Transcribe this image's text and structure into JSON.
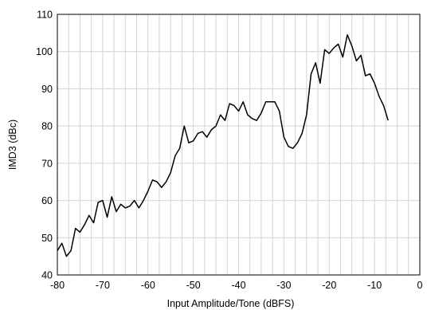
{
  "chart_data": {
    "type": "line",
    "xlabel": "Input Amplitude/Tone (dBFS)",
    "ylabel": "IMD3 (dBc)",
    "xlim": [
      -80,
      0
    ],
    "ylim": [
      40,
      110
    ],
    "xticks": [
      -80,
      -70,
      -60,
      -50,
      -40,
      -30,
      -20,
      -10,
      0
    ],
    "yticks": [
      40,
      50,
      60,
      70,
      80,
      90,
      100,
      110
    ],
    "x_minor_step": 2.5,
    "grid": true,
    "series": [
      {
        "x": [
          -80,
          -79,
          -78,
          -77,
          -76,
          -75,
          -74,
          -73,
          -72,
          -71,
          -70,
          -69,
          -68,
          -67,
          -66,
          -65,
          -64,
          -63,
          -62,
          -61,
          -60,
          -59,
          -58,
          -57,
          -56,
          -55,
          -54,
          -53,
          -52,
          -51,
          -50,
          -49,
          -48,
          -47,
          -46,
          -45,
          -44,
          -43,
          -42,
          -41,
          -40,
          -39,
          -38,
          -37,
          -36,
          -35,
          -34,
          -33,
          -32,
          -31,
          -30,
          -29,
          -28,
          -27,
          -26,
          -25,
          -24,
          -23,
          -22,
          -21,
          -20,
          -19,
          -18,
          -17,
          -16,
          -15,
          -14,
          -13,
          -12,
          -11,
          -10,
          -9,
          -8,
          -7
        ],
        "values": [
          46.5,
          48.5,
          45,
          46.5,
          52.5,
          51.5,
          53.5,
          56,
          54,
          59.5,
          60,
          55.5,
          61,
          57,
          59,
          58,
          58.5,
          60,
          58,
          60,
          62.5,
          65.5,
          65,
          63.5,
          65,
          67.5,
          72,
          74,
          80,
          75.5,
          76,
          78,
          78.5,
          77,
          79,
          80,
          83,
          81.5,
          86,
          85.5,
          84,
          86.5,
          83,
          82,
          81.5,
          83.5,
          86.5,
          86.5,
          86.5,
          84,
          77,
          74.5,
          74,
          75.5,
          78,
          83,
          94,
          97,
          91.5,
          100.5,
          99.5,
          101,
          102,
          98.5,
          104.5,
          101.5,
          97.5,
          99,
          93.5,
          94,
          91.5,
          88,
          85.5,
          81.5
        ]
      }
    ]
  }
}
